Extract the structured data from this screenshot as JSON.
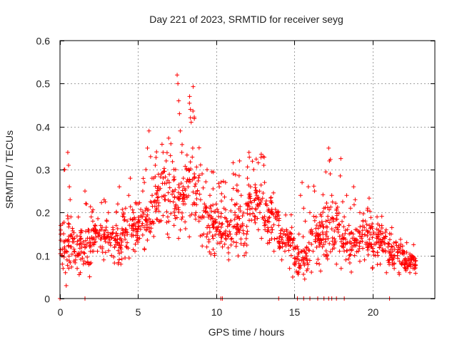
{
  "chart_data": {
    "type": "scatter",
    "title": "Day 221 of 2023, SRMTID for receiver seyg",
    "xlabel": "GPS time / hours",
    "ylabel": "SRMTID / TECUs",
    "xlim": [
      0,
      24
    ],
    "ylim": [
      0,
      0.6
    ],
    "xticks": [
      0,
      5,
      10,
      15,
      20
    ],
    "xtick_labels": [
      "0",
      "5",
      "10",
      "15",
      "20"
    ],
    "yticks": [
      0,
      0.1,
      0.2,
      0.3,
      0.4,
      0.5,
      0.6
    ],
    "ytick_labels": [
      "0",
      "0.1",
      "0.2",
      "0.3",
      "0.4",
      "0.5",
      "0.6"
    ],
    "grid": true,
    "marker": "+",
    "color": "#ff0000",
    "envelope": {
      "description": "approximate min / typical / max of SRMTID per hour bin",
      "hours": [
        0,
        1,
        2,
        3,
        4,
        5,
        6,
        7,
        8,
        9,
        10,
        11,
        12,
        13,
        14,
        15,
        16,
        17,
        18,
        19,
        20,
        21,
        22,
        23
      ],
      "low": [
        0.04,
        0.05,
        0.09,
        0.08,
        0.08,
        0.1,
        0.14,
        0.14,
        0.14,
        0.1,
        0.08,
        0.07,
        0.15,
        0.1,
        0.08,
        0.04,
        0.06,
        0.07,
        0.06,
        0.07,
        0.07,
        0.05,
        0.05,
        0.06
      ],
      "mid": [
        0.1,
        0.11,
        0.16,
        0.14,
        0.16,
        0.19,
        0.25,
        0.24,
        0.23,
        0.19,
        0.16,
        0.17,
        0.22,
        0.19,
        0.14,
        0.1,
        0.15,
        0.15,
        0.12,
        0.16,
        0.14,
        0.11,
        0.09,
        0.08
      ],
      "high": [
        0.34,
        0.25,
        0.23,
        0.21,
        0.27,
        0.28,
        0.39,
        0.36,
        0.52,
        0.3,
        0.28,
        0.32,
        0.34,
        0.33,
        0.2,
        0.16,
        0.27,
        0.35,
        0.24,
        0.26,
        0.22,
        0.18,
        0.13,
        0.1
      ]
    },
    "points": [
      [
        0.05,
        0.17
      ],
      [
        0.1,
        0.1
      ],
      [
        0.15,
        0.08
      ],
      [
        0.2,
        0.07
      ],
      [
        0.3,
        0.12
      ],
      [
        0.35,
        0.06
      ],
      [
        0.4,
        0.03
      ],
      [
        0.45,
        0.09
      ],
      [
        0.5,
        0.34
      ],
      [
        0.55,
        0.31
      ],
      [
        0.6,
        0.26
      ],
      [
        0.65,
        0.23
      ],
      [
        0.7,
        0.19
      ],
      [
        0.8,
        0.14
      ],
      [
        0.9,
        0.11
      ],
      [
        1.0,
        0.09
      ],
      [
        1.1,
        0.07
      ],
      [
        1.2,
        0.1
      ],
      [
        1.3,
        0.06
      ],
      [
        1.4,
        0.12
      ],
      [
        1.5,
        0.08
      ],
      [
        1.6,
        0.25
      ],
      [
        1.7,
        0.22
      ],
      [
        1.8,
        0.16
      ],
      [
        1.9,
        0.14
      ],
      [
        2.0,
        0.19
      ],
      [
        2.1,
        0.18
      ],
      [
        2.2,
        0.13
      ],
      [
        2.3,
        0.16
      ],
      [
        2.4,
        0.11
      ],
      [
        2.5,
        0.15
      ],
      [
        2.6,
        0.17
      ],
      [
        2.7,
        0.12
      ],
      [
        2.8,
        0.09
      ],
      [
        2.9,
        0.14
      ],
      [
        3.0,
        0.18
      ],
      [
        3.1,
        0.2
      ],
      [
        3.2,
        0.13
      ],
      [
        3.3,
        0.1
      ],
      [
        3.4,
        0.16
      ],
      [
        3.5,
        0.12
      ],
      [
        3.6,
        0.17
      ],
      [
        3.7,
        0.22
      ],
      [
        3.8,
        0.26
      ],
      [
        3.9,
        0.08
      ],
      [
        4.0,
        0.15
      ],
      [
        4.1,
        0.19
      ],
      [
        4.2,
        0.21
      ],
      [
        4.3,
        0.13
      ],
      [
        4.4,
        0.24
      ],
      [
        4.5,
        0.28
      ],
      [
        4.6,
        0.17
      ],
      [
        4.7,
        0.2
      ],
      [
        4.8,
        0.11
      ],
      [
        4.9,
        0.16
      ],
      [
        5.0,
        0.22
      ],
      [
        5.1,
        0.14
      ],
      [
        5.2,
        0.19
      ],
      [
        5.3,
        0.25
      ],
      [
        5.4,
        0.27
      ],
      [
        5.5,
        0.3
      ],
      [
        5.6,
        0.35
      ],
      [
        5.7,
        0.39
      ],
      [
        5.8,
        0.33
      ],
      [
        5.9,
        0.24
      ],
      [
        6.0,
        0.28
      ],
      [
        6.1,
        0.31
      ],
      [
        6.2,
        0.21
      ],
      [
        6.3,
        0.26
      ],
      [
        6.4,
        0.18
      ],
      [
        6.5,
        0.29
      ],
      [
        6.6,
        0.34
      ],
      [
        6.7,
        0.23
      ],
      [
        6.8,
        0.32
      ],
      [
        6.9,
        0.19
      ],
      [
        7.0,
        0.27
      ],
      [
        7.1,
        0.36
      ],
      [
        7.2,
        0.25
      ],
      [
        7.3,
        0.17
      ],
      [
        7.4,
        0.3
      ],
      [
        7.5,
        0.52
      ],
      [
        7.55,
        0.5
      ],
      [
        7.6,
        0.46
      ],
      [
        7.65,
        0.43
      ],
      [
        7.7,
        0.39
      ],
      [
        7.8,
        0.34
      ],
      [
        7.9,
        0.28
      ],
      [
        8.0,
        0.22
      ],
      [
        8.1,
        0.3
      ],
      [
        8.2,
        0.26
      ],
      [
        8.3,
        0.47
      ],
      [
        8.35,
        0.44
      ],
      [
        8.4,
        0.41
      ],
      [
        8.5,
        0.35
      ],
      [
        8.6,
        0.29
      ],
      [
        8.7,
        0.2
      ],
      [
        8.8,
        0.25
      ],
      [
        8.9,
        0.18
      ],
      [
        9.0,
        0.23
      ],
      [
        9.1,
        0.29
      ],
      [
        9.2,
        0.15
      ],
      [
        9.3,
        0.21
      ],
      [
        9.4,
        0.12
      ],
      [
        9.5,
        0.17
      ],
      [
        9.6,
        0.24
      ],
      [
        9.7,
        0.19
      ],
      [
        9.8,
        0.14
      ],
      [
        9.9,
        0.1
      ],
      [
        10.0,
        0.22
      ],
      [
        10.1,
        0.16
      ],
      [
        10.2,
        0.26
      ],
      [
        10.3,
        0.19
      ],
      [
        10.4,
        0.12
      ],
      [
        10.5,
        0.21
      ],
      [
        10.6,
        0.27
      ],
      [
        10.7,
        0.18
      ],
      [
        10.8,
        0.09
      ],
      [
        10.9,
        0.15
      ],
      [
        11.0,
        0.23
      ],
      [
        11.1,
        0.29
      ],
      [
        11.2,
        0.2
      ],
      [
        11.3,
        0.13
      ],
      [
        11.4,
        0.25
      ],
      [
        11.5,
        0.32
      ],
      [
        11.6,
        0.24
      ],
      [
        11.7,
        0.17
      ],
      [
        11.8,
        0.1
      ],
      [
        11.9,
        0.22
      ],
      [
        12.0,
        0.28
      ],
      [
        12.1,
        0.34
      ],
      [
        12.2,
        0.26
      ],
      [
        12.3,
        0.21
      ],
      [
        12.4,
        0.3
      ],
      [
        12.5,
        0.19
      ],
      [
        12.6,
        0.24
      ],
      [
        12.7,
        0.16
      ],
      [
        12.8,
        0.2
      ],
      [
        12.9,
        0.14
      ],
      [
        13.0,
        0.33
      ],
      [
        13.05,
        0.31
      ],
      [
        13.1,
        0.27
      ],
      [
        13.2,
        0.22
      ],
      [
        13.3,
        0.18
      ],
      [
        13.4,
        0.13
      ],
      [
        13.5,
        0.2
      ],
      [
        13.6,
        0.16
      ],
      [
        13.7,
        0.11
      ],
      [
        13.8,
        0.19
      ],
      [
        13.9,
        0.14
      ],
      [
        14.0,
        0.17
      ],
      [
        14.1,
        0.12
      ],
      [
        14.2,
        0.09
      ],
      [
        14.3,
        0.15
      ],
      [
        14.4,
        0.11
      ],
      [
        14.5,
        0.16
      ],
      [
        14.6,
        0.13
      ],
      [
        14.7,
        0.07
      ],
      [
        14.8,
        0.1
      ],
      [
        14.9,
        0.05
      ],
      [
        15.0,
        0.08
      ],
      [
        15.1,
        0.12
      ],
      [
        15.2,
        0.06
      ],
      [
        15.3,
        0.15
      ],
      [
        15.4,
        0.24
      ],
      [
        15.5,
        0.27
      ],
      [
        15.6,
        0.21
      ],
      [
        15.7,
        0.18
      ],
      [
        15.8,
        0.12
      ],
      [
        15.9,
        0.26
      ],
      [
        16.0,
        0.2
      ],
      [
        16.1,
        0.16
      ],
      [
        16.2,
        0.11
      ],
      [
        16.3,
        0.25
      ],
      [
        16.4,
        0.19
      ],
      [
        16.5,
        0.14
      ],
      [
        16.6,
        0.08
      ],
      [
        16.7,
        0.17
      ],
      [
        16.8,
        0.12
      ],
      [
        16.9,
        0.21
      ],
      [
        17.0,
        0.15
      ],
      [
        17.1,
        0.1
      ],
      [
        17.2,
        0.35
      ],
      [
        17.25,
        0.32
      ],
      [
        17.3,
        0.29
      ],
      [
        17.4,
        0.24
      ],
      [
        17.5,
        0.18
      ],
      [
        17.6,
        0.13
      ],
      [
        17.7,
        0.08
      ],
      [
        17.8,
        0.16
      ],
      [
        17.9,
        0.11
      ],
      [
        18.0,
        0.07
      ],
      [
        18.1,
        0.14
      ],
      [
        18.2,
        0.19
      ],
      [
        18.3,
        0.09
      ],
      [
        18.4,
        0.13
      ],
      [
        18.5,
        0.17
      ],
      [
        18.6,
        0.21
      ],
      [
        18.7,
        0.12
      ],
      [
        18.8,
        0.26
      ],
      [
        18.9,
        0.23
      ],
      [
        19.0,
        0.16
      ],
      [
        19.1,
        0.11
      ],
      [
        19.2,
        0.2
      ],
      [
        19.3,
        0.14
      ],
      [
        19.4,
        0.18
      ],
      [
        19.5,
        0.09
      ],
      [
        19.6,
        0.13
      ],
      [
        19.7,
        0.21
      ],
      [
        19.8,
        0.17
      ],
      [
        19.9,
        0.12
      ],
      [
        20.0,
        0.07
      ],
      [
        20.1,
        0.15
      ],
      [
        20.2,
        0.1
      ],
      [
        20.3,
        0.19
      ],
      [
        20.4,
        0.13
      ],
      [
        20.5,
        0.08
      ],
      [
        20.6,
        0.17
      ],
      [
        20.7,
        0.11
      ],
      [
        20.8,
        0.14
      ],
      [
        20.9,
        0.06
      ],
      [
        21.0,
        0.12
      ],
      [
        21.1,
        0.09
      ],
      [
        21.2,
        0.15
      ],
      [
        21.3,
        0.11
      ],
      [
        21.4,
        0.07
      ],
      [
        21.5,
        0.13
      ],
      [
        21.6,
        0.1
      ],
      [
        21.7,
        0.06
      ],
      [
        21.8,
        0.12
      ],
      [
        21.9,
        0.08
      ],
      [
        22.0,
        0.11
      ],
      [
        22.1,
        0.07
      ],
      [
        22.2,
        0.13
      ],
      [
        22.3,
        0.09
      ],
      [
        22.4,
        0.06
      ],
      [
        22.5,
        0.1
      ],
      [
        22.6,
        0.08
      ],
      [
        22.7,
        0.07
      ],
      [
        0.0,
        0.0
      ],
      [
        1.6,
        0.0
      ],
      [
        10.3,
        0.0
      ],
      [
        10.4,
        0.0
      ],
      [
        14.0,
        0.0
      ],
      [
        15.2,
        0.0
      ],
      [
        15.6,
        0.0
      ],
      [
        16.0,
        0.0
      ],
      [
        16.5,
        0.0
      ],
      [
        16.9,
        0.0
      ],
      [
        17.2,
        0.0
      ],
      [
        17.4,
        0.0
      ],
      [
        17.7,
        0.0
      ],
      [
        18.2,
        0.0
      ],
      [
        21.1,
        0.0
      ]
    ]
  }
}
